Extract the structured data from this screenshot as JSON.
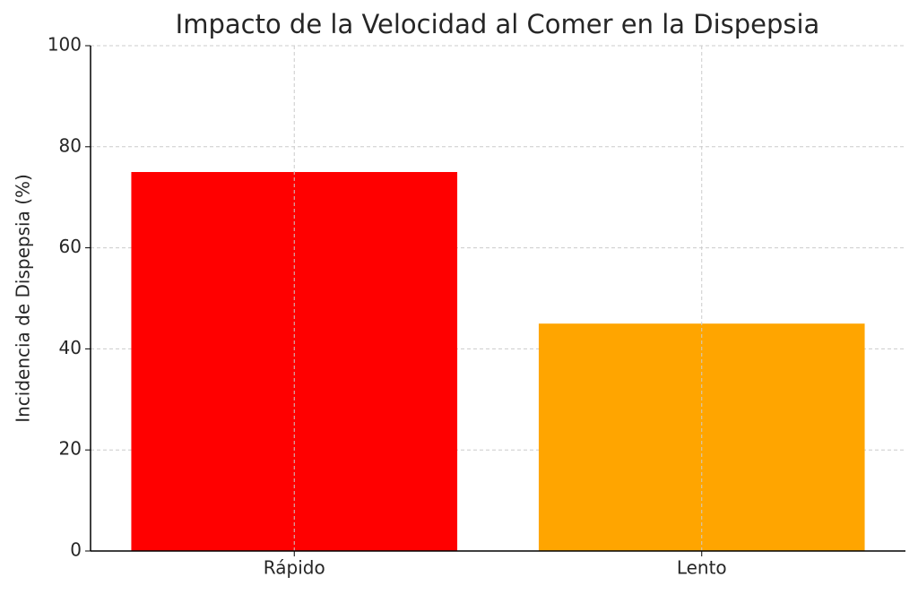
{
  "chart_data": {
    "type": "bar",
    "title": "Impacto de la Velocidad al Comer en la Dispepsia",
    "y_label": "Incidencia de Dispepsia (%)",
    "categories": [
      "Rápido",
      "Lento"
    ],
    "values": [
      75,
      45
    ],
    "colors": [
      "#ff0000",
      "#ffa500"
    ],
    "ylim": [
      0,
      100
    ],
    "yticks": [
      0,
      20,
      40,
      60,
      80,
      100
    ],
    "grid": true
  }
}
